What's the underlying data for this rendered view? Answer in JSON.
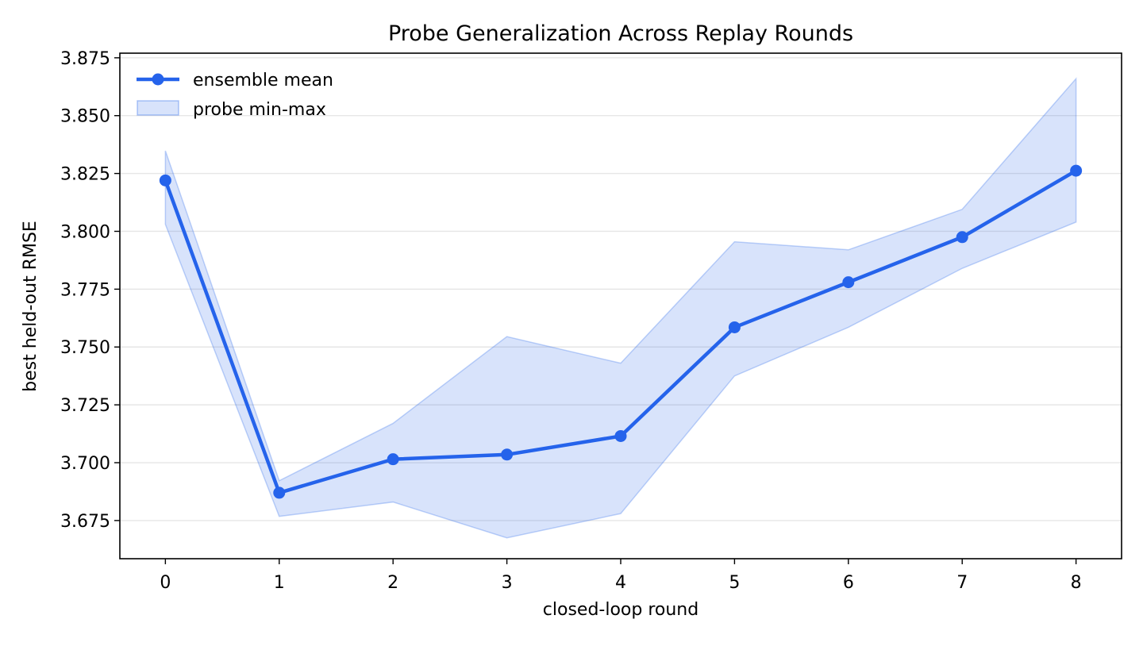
{
  "chart_data": {
    "type": "line",
    "title": "Probe Generalization Across Replay Rounds",
    "xlabel": "closed-loop round",
    "ylabel": "best held-out RMSE",
    "x": [
      0,
      1,
      2,
      3,
      4,
      5,
      6,
      7,
      8
    ],
    "xlim": [
      -0.4,
      8.4
    ],
    "ylim": [
      3.6585,
      3.877
    ],
    "x_ticks": [
      "0",
      "1",
      "2",
      "3",
      "4",
      "5",
      "6",
      "7",
      "8"
    ],
    "y_ticks": [
      3.675,
      3.7,
      3.725,
      3.75,
      3.775,
      3.8,
      3.825,
      3.85,
      3.875
    ],
    "y_tick_labels": [
      "3.675",
      "3.700",
      "3.725",
      "3.750",
      "3.775",
      "3.800",
      "3.825",
      "3.850",
      "3.875"
    ],
    "grid": "horizontal",
    "legend_placement": "top-left",
    "series": [
      {
        "name": "ensemble mean",
        "kind": "line-marker",
        "color": "#2563eb",
        "values": [
          3.822,
          3.687,
          3.7015,
          3.7035,
          3.7115,
          3.7585,
          3.778,
          3.7975,
          3.8262
        ]
      },
      {
        "name": "probe min-max",
        "kind": "band",
        "color": "#2563eb",
        "lower": [
          3.803,
          3.6768,
          3.683,
          3.6675,
          3.678,
          3.7375,
          3.7585,
          3.784,
          3.804
        ],
        "upper": [
          3.8348,
          3.6922,
          3.717,
          3.7545,
          3.743,
          3.7955,
          3.792,
          3.8095,
          3.866
        ]
      }
    ]
  }
}
